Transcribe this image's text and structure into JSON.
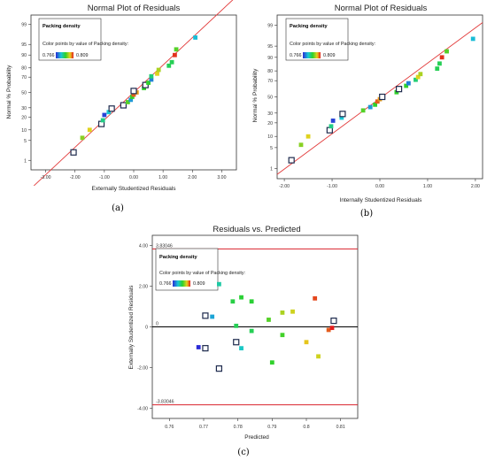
{
  "chart_data": [
    {
      "type": "scatter",
      "panel": "a",
      "caption": "(a)",
      "title": "Normal Plot of Residuals",
      "xlabel": "Externally Studentized Residuals",
      "ylabel": "Normal % Probability",
      "xlim": [
        -3.5,
        3.5
      ],
      "x_ticks": [
        "-3.00",
        "-2.00",
        "-1.00",
        "0.00",
        "1.00",
        "2.00",
        "3.00"
      ],
      "y_ticks": [
        "1",
        "5",
        "10",
        "20",
        "30",
        "50",
        "70",
        "80",
        "90",
        "95",
        "99"
      ],
      "y_scale": "normal-probability",
      "grid": false,
      "legend": {
        "title": "Packing density",
        "text": "Color points by value of Packing density:",
        "min": "0.766",
        "max": "0.809",
        "placement": "top-left"
      },
      "fit_line": {
        "x0": -3.4,
        "y0": 0.07,
        "x1": 3.4,
        "y1": 99.93,
        "color": "#e23b3b"
      },
      "points": [
        {
          "x": -2.05,
          "y": 2,
          "c": 0.766,
          "open": true
        },
        {
          "x": -1.75,
          "y": 6,
          "c": 0.795
        },
        {
          "x": -1.5,
          "y": 10,
          "c": 0.8
        },
        {
          "x": -1.1,
          "y": 14,
          "c": 0.766,
          "open": true
        },
        {
          "x": -1.05,
          "y": 17,
          "c": 0.784
        },
        {
          "x": -1.0,
          "y": 22,
          "c": 0.768
        },
        {
          "x": -0.85,
          "y": 25,
          "c": 0.779
        },
        {
          "x": -0.75,
          "y": 29,
          "c": 0.771,
          "open": true
        },
        {
          "x": -0.35,
          "y": 33,
          "c": 0.775,
          "open": true
        },
        {
          "x": -0.2,
          "y": 37,
          "c": 0.792
        },
        {
          "x": -0.1,
          "y": 40,
          "c": 0.775
        },
        {
          "x": -0.05,
          "y": 44,
          "c": 0.79
        },
        {
          "x": 0.0,
          "y": 47,
          "c": 0.806
        },
        {
          "x": 0.1,
          "y": 50,
          "c": 0.803
        },
        {
          "x": 0.0,
          "y": 52,
          "c": 0.77,
          "open": true
        },
        {
          "x": 0.35,
          "y": 56,
          "c": 0.79
        },
        {
          "x": 0.4,
          "y": 60,
          "c": 0.775,
          "open": true
        },
        {
          "x": 0.5,
          "y": 63,
          "c": 0.79
        },
        {
          "x": 0.6,
          "y": 67,
          "c": 0.773
        },
        {
          "x": 0.6,
          "y": 71,
          "c": 0.785
        },
        {
          "x": 0.8,
          "y": 74,
          "c": 0.8
        },
        {
          "x": 0.85,
          "y": 78,
          "c": 0.797
        },
        {
          "x": 1.2,
          "y": 82,
          "c": 0.787
        },
        {
          "x": 1.3,
          "y": 85,
          "c": 0.787
        },
        {
          "x": 1.4,
          "y": 90,
          "c": 0.808
        },
        {
          "x": 1.45,
          "y": 93,
          "c": 0.792
        },
        {
          "x": 2.1,
          "y": 97,
          "c": 0.778
        }
      ]
    },
    {
      "type": "scatter",
      "panel": "b",
      "caption": "(b)",
      "title": "Normal Plot of Residuals",
      "xlabel": "Internally Studentized Residuals",
      "ylabel": "Normal % Probability",
      "xlim": [
        -2.15,
        2.15
      ],
      "x_ticks": [
        "-2.00",
        "-1.00",
        "0.00",
        "1.00",
        "2.00"
      ],
      "y_ticks": [
        "1",
        "5",
        "10",
        "20",
        "30",
        "50",
        "70",
        "80",
        "90",
        "95",
        "99"
      ],
      "y_scale": "normal-probability",
      "grid": false,
      "legend": {
        "title": "Packing density",
        "text": "Color points by value of Packing density:",
        "min": "0.766",
        "max": "0.809",
        "placement": "top-left"
      },
      "fit_line": {
        "x0": -2.15,
        "y0": 0.6,
        "x1": 2.15,
        "y1": 99.2,
        "color": "#e23b3b"
      },
      "points": [
        {
          "x": -1.85,
          "y": 2,
          "c": 0.766,
          "open": true
        },
        {
          "x": -1.65,
          "y": 6,
          "c": 0.795
        },
        {
          "x": -1.5,
          "y": 10,
          "c": 0.8
        },
        {
          "x": -1.05,
          "y": 14,
          "c": 0.766,
          "open": true
        },
        {
          "x": -1.02,
          "y": 17,
          "c": 0.784
        },
        {
          "x": -0.98,
          "y": 22,
          "c": 0.768
        },
        {
          "x": -0.8,
          "y": 25,
          "c": 0.779
        },
        {
          "x": -0.78,
          "y": 29,
          "c": 0.771,
          "open": true
        },
        {
          "x": -0.35,
          "y": 33,
          "c": 0.792
        },
        {
          "x": -0.2,
          "y": 37,
          "c": 0.775
        },
        {
          "x": -0.1,
          "y": 40,
          "c": 0.79
        },
        {
          "x": -0.05,
          "y": 44,
          "c": 0.806
        },
        {
          "x": 0.0,
          "y": 47,
          "c": 0.803
        },
        {
          "x": 0.05,
          "y": 50,
          "c": 0.77,
          "open": true
        },
        {
          "x": 0.35,
          "y": 56,
          "c": 0.79
        },
        {
          "x": 0.4,
          "y": 60,
          "c": 0.775,
          "open": true
        },
        {
          "x": 0.55,
          "y": 64,
          "c": 0.79
        },
        {
          "x": 0.6,
          "y": 67,
          "c": 0.773
        },
        {
          "x": 0.75,
          "y": 71,
          "c": 0.785
        },
        {
          "x": 0.8,
          "y": 74,
          "c": 0.8
        },
        {
          "x": 0.85,
          "y": 77,
          "c": 0.797
        },
        {
          "x": 1.2,
          "y": 82,
          "c": 0.787
        },
        {
          "x": 1.25,
          "y": 86,
          "c": 0.787
        },
        {
          "x": 1.3,
          "y": 90,
          "c": 0.808
        },
        {
          "x": 1.4,
          "y": 93,
          "c": 0.792
        },
        {
          "x": 1.95,
          "y": 97,
          "c": 0.778
        }
      ]
    },
    {
      "type": "scatter",
      "panel": "c",
      "caption": "(c)",
      "title": "Residuals vs. Predicted",
      "xlabel": "Predicted",
      "ylabel": "Externally Studentized Residuals",
      "xlim": [
        0.755,
        0.815
      ],
      "ylim": [
        -4.5,
        4.5
      ],
      "x_ticks": [
        "0.76",
        "0.77",
        "0.78",
        "0.79",
        "0.8",
        "0.81"
      ],
      "y_ticks": [
        "4.00",
        "2.00",
        "0",
        "-2.00",
        "-4.00"
      ],
      "grid": false,
      "legend": {
        "title": "Packing density",
        "text": "Color points by value of Packing density:",
        "min": "0.766",
        "max": "0.809",
        "placement": "top-left"
      },
      "ref_lines": [
        {
          "y": 3.83046,
          "label": "3.83046",
          "color": "#d9232d"
        },
        {
          "y": 0,
          "label": "0",
          "color": "#000000"
        },
        {
          "y": -3.83046,
          "label": "-3.83046",
          "color": "#d9232d"
        }
      ],
      "points": [
        {
          "x": 0.7685,
          "y": -1.0,
          "c": 0.766
        },
        {
          "x": 0.7705,
          "y": 0.55,
          "c": 0.77,
          "open": true
        },
        {
          "x": 0.7705,
          "y": -1.05,
          "c": 0.766,
          "open": true
        },
        {
          "x": 0.7725,
          "y": 0.5,
          "c": 0.776
        },
        {
          "x": 0.7745,
          "y": 2.1,
          "c": 0.782
        },
        {
          "x": 0.7745,
          "y": -2.05,
          "c": 0.77,
          "open": true
        },
        {
          "x": 0.7785,
          "y": 1.25,
          "c": 0.788
        },
        {
          "x": 0.7795,
          "y": 0.05,
          "c": 0.787
        },
        {
          "x": 0.7795,
          "y": -0.75,
          "c": 0.775,
          "open": true
        },
        {
          "x": 0.781,
          "y": 1.45,
          "c": 0.789
        },
        {
          "x": 0.781,
          "y": -1.05,
          "c": 0.78
        },
        {
          "x": 0.784,
          "y": 1.25,
          "c": 0.789
        },
        {
          "x": 0.784,
          "y": -0.2,
          "c": 0.787
        },
        {
          "x": 0.789,
          "y": 0.35,
          "c": 0.792
        },
        {
          "x": 0.79,
          "y": -1.75,
          "c": 0.79
        },
        {
          "x": 0.793,
          "y": 0.7,
          "c": 0.797
        },
        {
          "x": 0.793,
          "y": -0.4,
          "c": 0.791
        },
        {
          "x": 0.796,
          "y": 0.75,
          "c": 0.799
        },
        {
          "x": 0.8,
          "y": -0.75,
          "c": 0.801
        },
        {
          "x": 0.8025,
          "y": 1.4,
          "c": 0.807
        },
        {
          "x": 0.8035,
          "y": -1.45,
          "c": 0.799
        },
        {
          "x": 0.8065,
          "y": -0.15,
          "c": 0.806
        },
        {
          "x": 0.8075,
          "y": -0.05,
          "c": 0.809
        },
        {
          "x": 0.808,
          "y": 0.3,
          "c": 0.803,
          "open": true
        }
      ]
    }
  ]
}
